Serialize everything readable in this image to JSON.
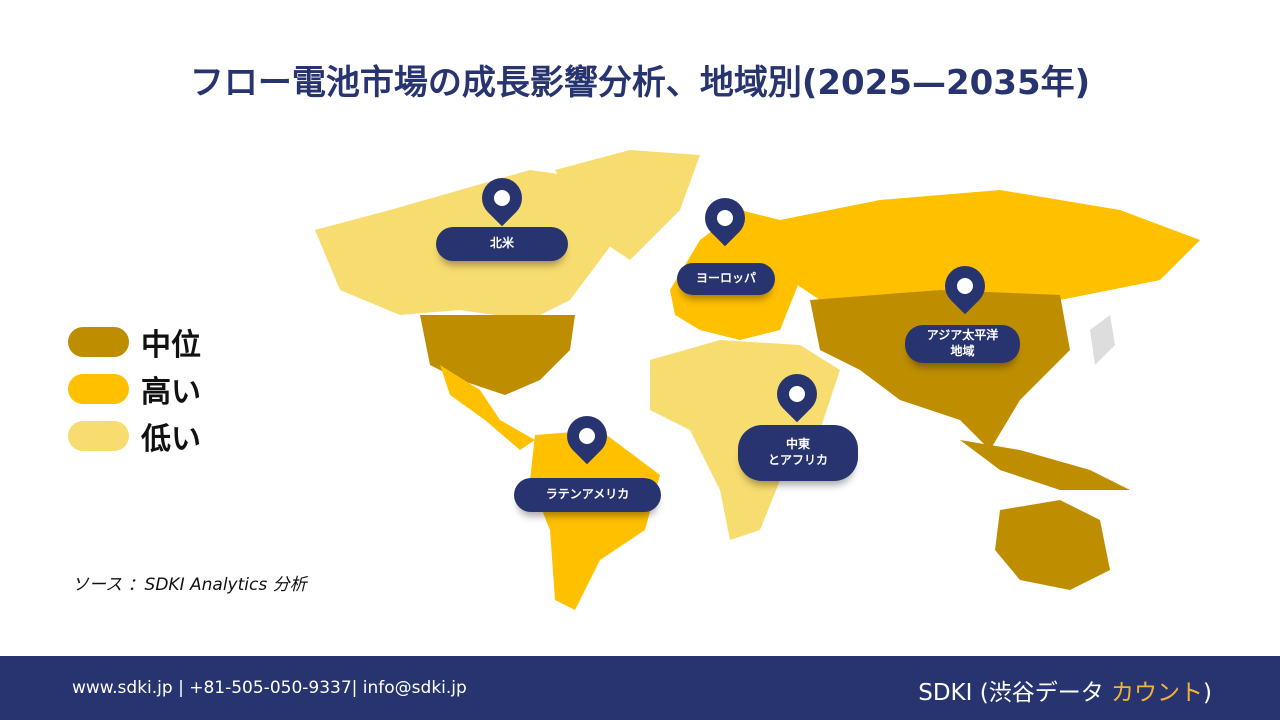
{
  "title": "フロー電池市場の成長影響分析、地域別(2025—2035年)",
  "legend": [
    {
      "label": "中位",
      "color": "#BE8E00"
    },
    {
      "label": "高い",
      "color": "#FFC000"
    },
    {
      "label": "低い",
      "color": "#F7DC6F"
    }
  ],
  "source": "ソース ：SDKI Analytics 分析",
  "regions": {
    "north_america": "北米",
    "europe": "ヨーロッパ",
    "asia_pacific": "アジア太平洋\n地域",
    "middle_east_africa": "中東\nとアフリカ",
    "latin_america": "ラテンアメリカ"
  },
  "footer": {
    "contact": "www.sdki.jp | +81-505-050-9337| info@sdki.jp",
    "brand_main": "SDKI (渋谷データ ",
    "brand_accent": "カウント",
    "brand_end": ")"
  }
}
